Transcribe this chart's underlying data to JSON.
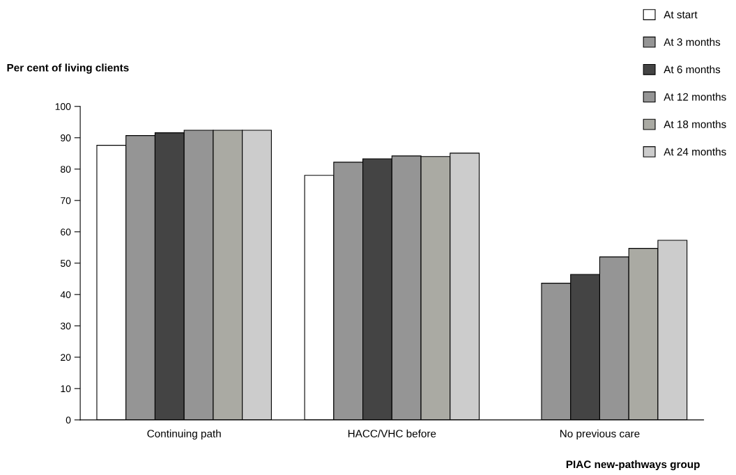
{
  "chart_data": {
    "type": "bar",
    "ylabel": "Per cent of living clients",
    "xlabel": "PIAC new-pathways group",
    "categories": [
      "Continuing path",
      "HACC/VHC before",
      "No previous care"
    ],
    "series": [
      {
        "name": "At start",
        "color": "#ffffff",
        "values": [
          87.6,
          78.0,
          null
        ]
      },
      {
        "name": "At 3 months",
        "color": "#959595",
        "values": [
          90.7,
          82.2,
          43.6
        ]
      },
      {
        "name": "At 6 months",
        "color": "#444444",
        "values": [
          91.6,
          83.3,
          46.4
        ]
      },
      {
        "name": "At 12 months",
        "color": "#959595",
        "values": [
          92.4,
          84.2,
          52.0
        ]
      },
      {
        "name": "At 18 months",
        "color": "#aaaaa3",
        "values": [
          92.4,
          84.0,
          54.7
        ]
      },
      {
        "name": "At 24 months",
        "color": "#cccccc",
        "values": [
          92.4,
          85.1,
          57.3
        ]
      }
    ],
    "ylim": [
      0,
      100
    ],
    "yticks": [
      0,
      10,
      20,
      30,
      40,
      50,
      60,
      70,
      80,
      90,
      100
    ],
    "grid": false,
    "legend": "top right"
  }
}
